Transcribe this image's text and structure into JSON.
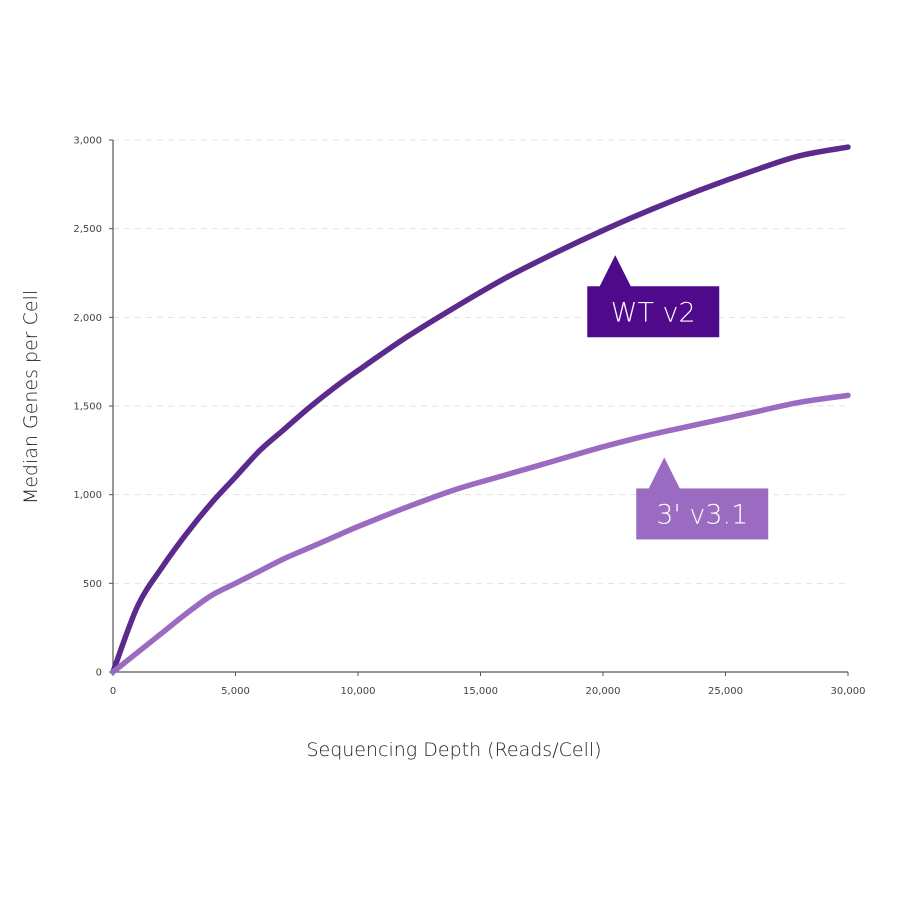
{
  "chart_data": {
    "type": "line",
    "xlabel": "Sequencing Depth (Reads/Cell)",
    "ylabel": "Median Genes per Cell",
    "xlim": [
      0,
      30000
    ],
    "ylim": [
      0,
      3000
    ],
    "x_ticks": [
      0,
      5000,
      10000,
      15000,
      20000,
      25000,
      30000
    ],
    "x_tick_labels": [
      "0",
      "5,000",
      "10,000",
      "15,000",
      "20,000",
      "25,000",
      "30,000"
    ],
    "y_ticks": [
      0,
      500,
      1000,
      1500,
      2000,
      2500,
      3000
    ],
    "y_tick_labels": [
      "0",
      "500",
      "1,000",
      "1,500",
      "2,000",
      "2,500",
      "3,000"
    ],
    "grid": {
      "horizontal": true,
      "style": "dashed"
    },
    "series": [
      {
        "name": "WT v2",
        "color": "#5b2a8c",
        "label_bg": "#4e0a8a",
        "label_anchor": [
          20500,
          2350
        ],
        "x": [
          0,
          1000,
          2000,
          3000,
          4000,
          5000,
          6000,
          7000,
          8000,
          9000,
          10000,
          12000,
          14000,
          16000,
          18000,
          20000,
          22000,
          24000,
          26000,
          28000,
          30000
        ],
        "y": [
          0,
          370,
          590,
          780,
          950,
          1100,
          1250,
          1370,
          1490,
          1600,
          1700,
          1890,
          2060,
          2220,
          2360,
          2490,
          2610,
          2720,
          2820,
          2910,
          2960
        ]
      },
      {
        "name": "3' v3.1",
        "color": "#9b6bc2",
        "label_bg": "#9b6bc2",
        "label_anchor": [
          22500,
          1210
        ],
        "x": [
          0,
          1000,
          2000,
          3000,
          4000,
          5000,
          6000,
          7000,
          8000,
          9000,
          10000,
          12000,
          14000,
          16000,
          18000,
          20000,
          22000,
          24000,
          26000,
          28000,
          30000
        ],
        "y": [
          0,
          110,
          220,
          330,
          430,
          500,
          570,
          640,
          700,
          760,
          820,
          930,
          1030,
          1110,
          1190,
          1270,
          1340,
          1400,
          1460,
          1520,
          1560
        ]
      }
    ]
  }
}
